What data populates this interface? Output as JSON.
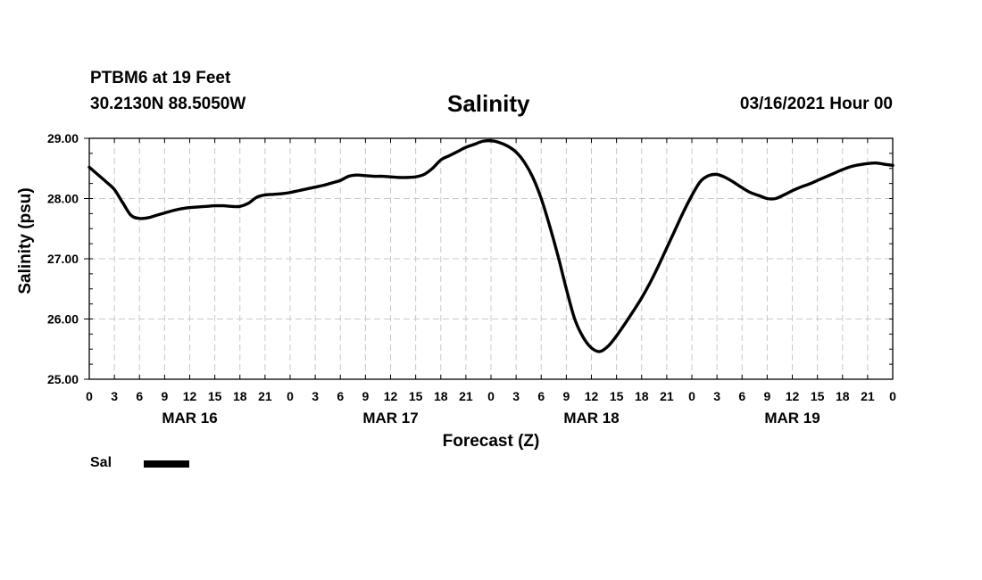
{
  "header": {
    "station": "PTBM6 at 19 Feet",
    "coords": "30.2130N 88.5050W",
    "datetime": "03/16/2021 Hour 00"
  },
  "chart_data": {
    "type": "line",
    "title": "Salinity",
    "xlabel": "Forecast (Z)",
    "ylabel": "Salinity (psu)",
    "ylim": [
      25.0,
      29.0
    ],
    "y_ticks": [
      "25.00",
      "26.00",
      "27.00",
      "28.00",
      "29.00"
    ],
    "y_tick_values": [
      25,
      26,
      27,
      28,
      29
    ],
    "xlim": [
      0,
      96
    ],
    "x_tick_labels": [
      "0",
      "3",
      "6",
      "9",
      "12",
      "15",
      "18",
      "21",
      "0",
      "3",
      "6",
      "9",
      "12",
      "15",
      "18",
      "21",
      "0",
      "3",
      "6",
      "9",
      "12",
      "15",
      "18",
      "21",
      "0",
      "3",
      "6",
      "9",
      "12",
      "15",
      "18",
      "21",
      "0"
    ],
    "day_labels": [
      {
        "label": "MAR 16",
        "hour": 12
      },
      {
        "label": "MAR 17",
        "hour": 36
      },
      {
        "label": "MAR 18",
        "hour": 60
      },
      {
        "label": "MAR 19",
        "hour": 84
      }
    ],
    "grid": true,
    "legend_position": "bottom-left",
    "series": [
      {
        "name": "Sal",
        "color": "#000000",
        "x": [
          0,
          1,
          2,
          3,
          4,
          5,
          6,
          7,
          8,
          9,
          10,
          11,
          12,
          13,
          14,
          15,
          16,
          17,
          18,
          19,
          20,
          21,
          22,
          23,
          24,
          25,
          26,
          27,
          28,
          29,
          30,
          31,
          32,
          33,
          34,
          35,
          36,
          37,
          38,
          39,
          40,
          41,
          42,
          43,
          44,
          45,
          46,
          47,
          48,
          49,
          50,
          51,
          52,
          53,
          54,
          55,
          56,
          57,
          58,
          59,
          60,
          61,
          62,
          63,
          64,
          65,
          66,
          67,
          68,
          69,
          70,
          71,
          72,
          73,
          74,
          75,
          76,
          77,
          78,
          79,
          80,
          81,
          82,
          83,
          84,
          85,
          86,
          87,
          88,
          89,
          90,
          91,
          92,
          93,
          94,
          95,
          96
        ],
        "y": [
          28.52,
          28.4,
          28.28,
          28.15,
          27.93,
          27.72,
          27.67,
          27.68,
          27.72,
          27.76,
          27.8,
          27.83,
          27.85,
          27.86,
          27.87,
          27.88,
          27.88,
          27.87,
          27.87,
          27.92,
          28.02,
          28.06,
          28.07,
          28.08,
          28.1,
          28.13,
          28.16,
          28.19,
          28.22,
          28.26,
          28.3,
          28.37,
          28.39,
          28.38,
          28.37,
          28.37,
          28.36,
          28.35,
          28.35,
          28.36,
          28.4,
          28.5,
          28.64,
          28.71,
          28.78,
          28.85,
          28.9,
          28.95,
          28.96,
          28.93,
          28.87,
          28.77,
          28.6,
          28.35,
          28.0,
          27.55,
          27.05,
          26.5,
          26.0,
          25.7,
          25.52,
          25.46,
          25.55,
          25.72,
          25.92,
          26.13,
          26.35,
          26.6,
          26.88,
          27.18,
          27.48,
          27.78,
          28.05,
          28.28,
          28.38,
          28.4,
          28.35,
          28.27,
          28.18,
          28.1,
          28.05,
          28.0,
          28.0,
          28.06,
          28.13,
          28.19,
          28.24,
          28.3,
          28.36,
          28.42,
          28.48,
          28.53,
          28.56,
          28.58,
          28.59,
          28.57,
          28.55
        ]
      }
    ]
  },
  "legend": {
    "label": "Sal"
  }
}
